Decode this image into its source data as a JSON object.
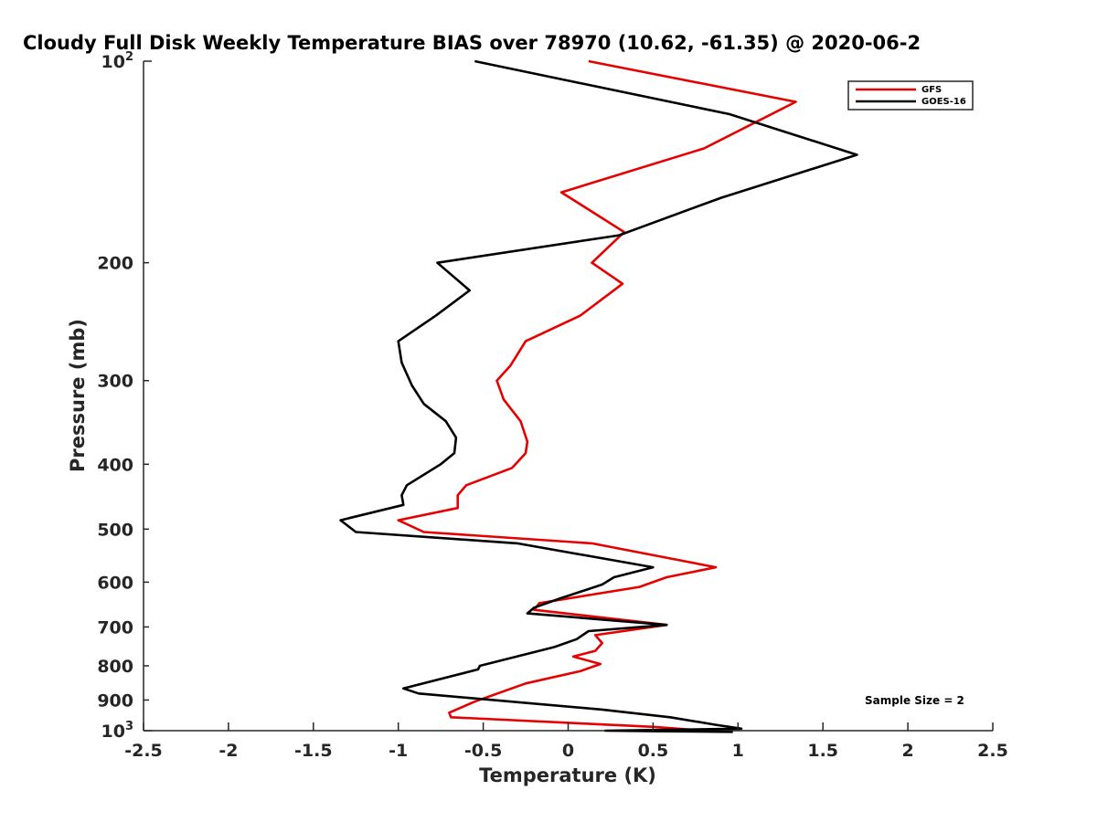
{
  "chart_data": {
    "type": "line",
    "title": "Cloudy Full Disk Weekly Temperature BIAS over 78970 (10.62, -61.35) @ 2020-06-2",
    "xlabel": "Temperature (K)",
    "ylabel": "Pressure (mb)",
    "xlim": [
      -2.5,
      2.5
    ],
    "ylim": [
      100,
      1000
    ],
    "y_scale": "log",
    "y_reversed": true,
    "grid": false,
    "legend_position": "top-right",
    "x_ticks": [
      "-2.5",
      "-2",
      "-1.5",
      "-1",
      "-0.5",
      "0",
      "0.5",
      "1",
      "1.5",
      "2",
      "2.5"
    ],
    "x_tick_values": [
      -2.5,
      -2,
      -1.5,
      -1,
      -0.5,
      0,
      0.5,
      1,
      1.5,
      2,
      2.5
    ],
    "y_ticks": [
      {
        "value": 100,
        "base": "10",
        "exp": "2"
      },
      {
        "value": 200,
        "label": "200"
      },
      {
        "value": 300,
        "label": "300"
      },
      {
        "value": 400,
        "label": "400"
      },
      {
        "value": 500,
        "label": "500"
      },
      {
        "value": 600,
        "label": "600"
      },
      {
        "value": 700,
        "label": "700"
      },
      {
        "value": 800,
        "label": "800"
      },
      {
        "value": 900,
        "label": "900"
      },
      {
        "value": 1000,
        "base": "10",
        "exp": "3"
      }
    ],
    "annotation": "Sample Size = 2",
    "series": [
      {
        "name": "GFS",
        "color": "#e60000",
        "points": [
          [
            0.12,
            100
          ],
          [
            1.34,
            115
          ],
          [
            0.8,
            135
          ],
          [
            -0.04,
            157
          ],
          [
            0.33,
            180
          ],
          [
            0.14,
            200
          ],
          [
            0.32,
            215
          ],
          [
            0.07,
            240
          ],
          [
            -0.25,
            262
          ],
          [
            -0.34,
            285
          ],
          [
            -0.42,
            300
          ],
          [
            -0.38,
            320
          ],
          [
            -0.28,
            345
          ],
          [
            -0.24,
            370
          ],
          [
            -0.25,
            385
          ],
          [
            -0.33,
            405
          ],
          [
            -0.6,
            430
          ],
          [
            -0.65,
            445
          ],
          [
            -0.65,
            465
          ],
          [
            -1.0,
            485
          ],
          [
            -0.85,
            505
          ],
          [
            0.14,
            525
          ],
          [
            0.87,
            570
          ],
          [
            0.58,
            590
          ],
          [
            0.42,
            610
          ],
          [
            -0.17,
            645
          ],
          [
            -0.2,
            660
          ],
          [
            0.58,
            695
          ],
          [
            0.16,
            720
          ],
          [
            0.2,
            740
          ],
          [
            0.16,
            760
          ],
          [
            0.03,
            775
          ],
          [
            0.19,
            795
          ],
          [
            0.07,
            815
          ],
          [
            -0.25,
            850
          ],
          [
            -0.55,
            905
          ],
          [
            -0.7,
            940
          ],
          [
            -0.69,
            955
          ],
          [
            0.5,
            987
          ],
          [
            0.8,
            1000
          ]
        ]
      },
      {
        "name": "GOES-16",
        "color": "#000000",
        "points": [
          [
            -0.55,
            100
          ],
          [
            0.95,
            120
          ],
          [
            1.7,
            138
          ],
          [
            0.9,
            160
          ],
          [
            0.3,
            182
          ],
          [
            -0.77,
            200
          ],
          [
            -0.58,
            220
          ],
          [
            -0.78,
            240
          ],
          [
            -1.0,
            262
          ],
          [
            -0.98,
            282
          ],
          [
            -0.92,
            305
          ],
          [
            -0.85,
            325
          ],
          [
            -0.72,
            345
          ],
          [
            -0.66,
            365
          ],
          [
            -0.67,
            385
          ],
          [
            -0.75,
            400
          ],
          [
            -0.95,
            430
          ],
          [
            -0.98,
            445
          ],
          [
            -0.97,
            460
          ],
          [
            -1.34,
            485
          ],
          [
            -1.25,
            505
          ],
          [
            -0.3,
            525
          ],
          [
            0.5,
            570
          ],
          [
            0.27,
            590
          ],
          [
            0.2,
            605
          ],
          [
            -0.05,
            635
          ],
          [
            -0.2,
            655
          ],
          [
            -0.24,
            668
          ],
          [
            0.58,
            695
          ],
          [
            0.12,
            710
          ],
          [
            0.05,
            730
          ],
          [
            -0.08,
            750
          ],
          [
            -0.52,
            800
          ],
          [
            -0.53,
            810
          ],
          [
            -0.97,
            865
          ],
          [
            -0.88,
            880
          ],
          [
            0.2,
            930
          ],
          [
            0.6,
            955
          ],
          [
            0.87,
            980
          ],
          [
            1.02,
            993
          ],
          [
            0.22,
            1000
          ],
          [
            0.5,
            1002
          ],
          [
            0.97,
            1004
          ]
        ]
      }
    ]
  }
}
